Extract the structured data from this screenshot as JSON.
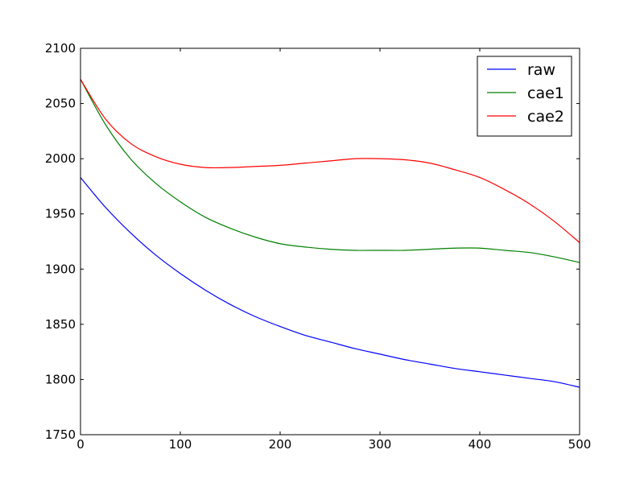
{
  "chart_data": {
    "type": "line",
    "title": "",
    "xlabel": "",
    "ylabel": "",
    "xlim": [
      0,
      500
    ],
    "ylim": [
      1750,
      2100
    ],
    "x_ticks": [
      0,
      100,
      200,
      300,
      400,
      500
    ],
    "y_ticks": [
      1750,
      1800,
      1850,
      1900,
      1950,
      2000,
      2050,
      2100
    ],
    "x_tick_labels": [
      "0",
      "100",
      "200",
      "300",
      "400",
      "500"
    ],
    "y_tick_labels": [
      "1750",
      "1800",
      "1850",
      "1900",
      "1950",
      "2000",
      "2050",
      "2100"
    ],
    "grid": false,
    "legend_position": "top-right",
    "x": [
      0,
      25,
      50,
      75,
      100,
      125,
      150,
      175,
      200,
      225,
      250,
      275,
      300,
      325,
      350,
      375,
      400,
      425,
      450,
      475,
      500
    ],
    "series": [
      {
        "name": "raw",
        "color": "#0000ff",
        "values": [
          1983,
          1956,
          1933,
          1913,
          1896,
          1881,
          1868,
          1857,
          1848,
          1840,
          1834,
          1828,
          1823,
          1818,
          1814,
          1810,
          1807,
          1804,
          1801,
          1798,
          1793
        ]
      },
      {
        "name": "cae1",
        "color": "#008000",
        "values": [
          2072,
          2031,
          2000,
          1978,
          1961,
          1947,
          1937,
          1929,
          1923,
          1920,
          1918,
          1917,
          1917,
          1917,
          1918,
          1919,
          1919,
          1917,
          1915,
          1911,
          1906
        ]
      },
      {
        "name": "cae2",
        "color": "#ff0000",
        "values": [
          2072,
          2036,
          2014,
          2002,
          1995,
          1992,
          1992,
          1993,
          1994,
          1996,
          1998,
          2000,
          2000,
          1999,
          1996,
          1990,
          1983,
          1972,
          1959,
          1943,
          1924
        ]
      }
    ]
  }
}
